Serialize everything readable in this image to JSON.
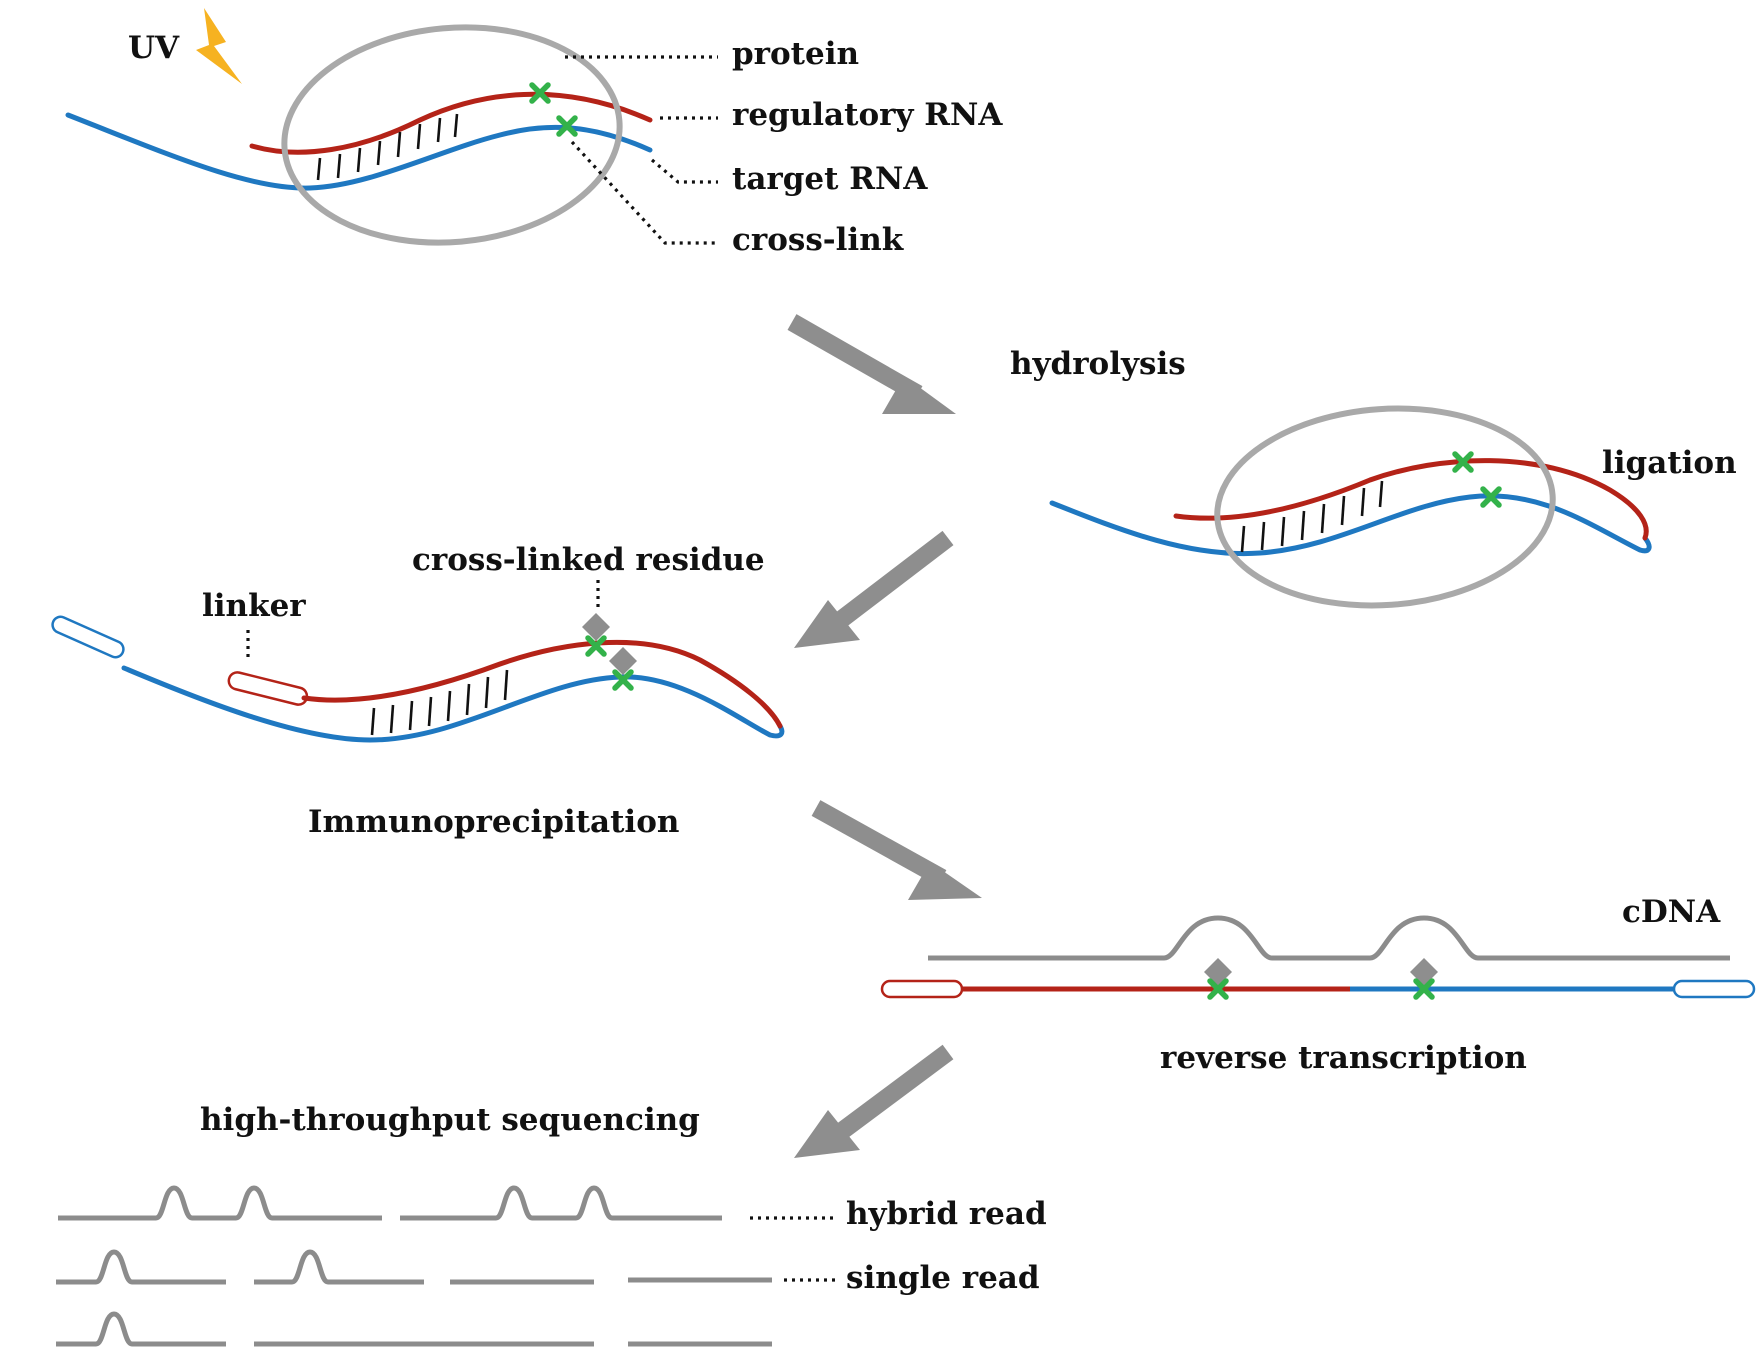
{
  "labels": {
    "uv": "UV",
    "protein": "protein",
    "regulatory_rna": "regulatory RNA",
    "target_rna": "target RNA",
    "cross_link": "cross-link",
    "hydrolysis": "hydrolysis",
    "ligation": "ligation",
    "linker": "linker",
    "cross_linked_residue": "cross-linked residue",
    "immunoprecipitation": "Immunoprecipitation",
    "cdna": "cDNA",
    "reverse_transcription": "reverse transcription",
    "high_throughput_sequencing": "high-throughput sequencing",
    "hybrid_read": "hybrid read",
    "single_read": "single read"
  },
  "colors": {
    "regulatory_rna": "#b42318",
    "target_rna": "#1f78c1",
    "cross_link_mark": "#33b24a",
    "protein_outline": "#a9a9a9",
    "arrow": "#8e8e8e",
    "uv_bolt": "#f6b221",
    "reads": "#8c8c8c"
  },
  "icons": {
    "uv": "lightning-bolt-icon",
    "cross_link": "x-mark-icon",
    "residue": "diamond-icon"
  }
}
